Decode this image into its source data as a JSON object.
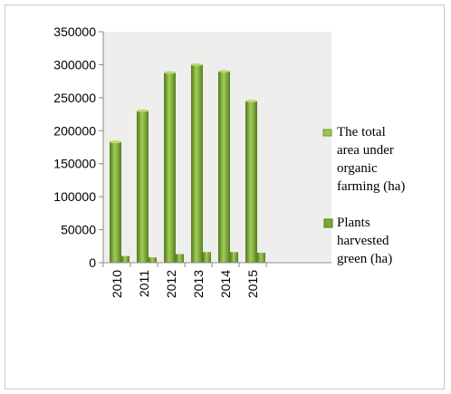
{
  "chart_data": {
    "type": "bar",
    "title": "",
    "xlabel": "",
    "ylabel": "",
    "categories": [
      "2010",
      "2011",
      "2012",
      "2013",
      "2014",
      "2015"
    ],
    "series": [
      {
        "name": "The total area under organic farming (ha)",
        "values": [
          183000,
          230000,
          288000,
          300000,
          290000,
          245000
        ]
      },
      {
        "name": "Plants harvested green (ha)",
        "values": [
          10000,
          8000,
          13000,
          16000,
          16000,
          15000
        ]
      }
    ],
    "ylim": [
      0,
      350000
    ],
    "yticks": [
      "350000",
      "300000",
      "250000",
      "200000",
      "150000",
      "100000",
      "50000",
      "0"
    ],
    "grid": false,
    "legend_position": "right",
    "legend_lines": [
      [
        "The total",
        "area under",
        "organic",
        "farming (ha)"
      ],
      [
        "Plants",
        "harvested",
        "green (ha)"
      ]
    ],
    "colors": {
      "series1": "#7aa63a",
      "series2": "#6a9a2e",
      "plot_bg": "#eeeeec",
      "axis": "#888888"
    }
  }
}
